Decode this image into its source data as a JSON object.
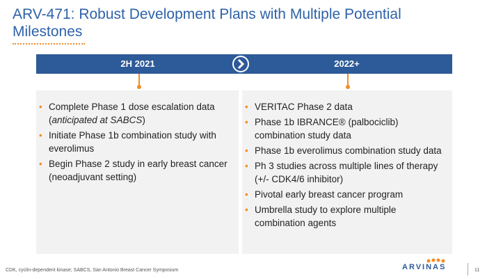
{
  "header": {
    "title": "ARV-471: Robust Development Plans with Multiple Potential Milestones"
  },
  "timeline": {
    "left": {
      "heading": "2H 2021",
      "items": [
        {
          "text": "Complete Phase 1 dose escalation data (",
          "emphasis": "anticipated at SABCS",
          "after": ")"
        },
        "Initiate Phase 1b combination study with everolimus",
        "Begin Phase 2 study in early breast cancer (neoadjuvant setting)"
      ]
    },
    "right": {
      "heading": "2022+",
      "items": [
        "VERITAC Phase 2 data",
        "Phase 1b IBRANCE® (palbociclib) combination study data",
        "Phase 1b everolimus combination study data",
        "Ph 3 studies across multiple lines of therapy (+/- CDK4/6 inhibitor)",
        "Pivotal early breast cancer program",
        "Umbrella study to explore multiple combination agents"
      ]
    }
  },
  "footer": {
    "note": "CDK, cyclin-dependent kinase; SABCS, San Antonio Breast Cancer Symposium",
    "logo": "ARVINAS",
    "page": "11"
  }
}
